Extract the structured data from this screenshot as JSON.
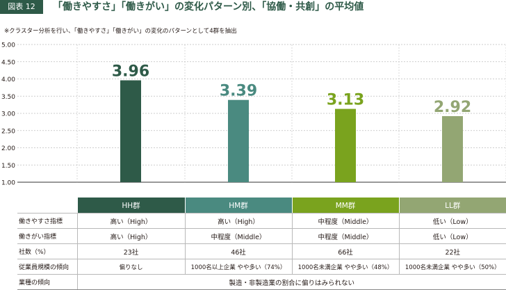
{
  "header": {
    "badge": "図表 12",
    "title": "「働きやすさ」「働きがい」の変化パターン別、「協働・共創」の平均値",
    "note": "※クラスター分析を行い、「働きやすさ」「働きがい」の変化のパターンとして4群を抽出"
  },
  "chart_data": {
    "type": "bar",
    "categories": [
      "HH群",
      "HM群",
      "MM群",
      "LL群"
    ],
    "values": [
      3.96,
      3.39,
      3.13,
      2.92
    ],
    "value_labels": [
      "3.96",
      "3.39",
      "3.13",
      "2.92"
    ],
    "bar_colors": [
      "#2e5a48",
      "#4a8a80",
      "#7aa31e",
      "#93a673"
    ],
    "ylim": [
      1.0,
      5.0
    ],
    "yticks": [
      "1.00",
      "1.50",
      "2.00",
      "2.50",
      "3.00",
      "3.50",
      "4.00",
      "4.50",
      "5.00"
    ],
    "grid": true,
    "title": "",
    "xlabel": "",
    "ylabel": ""
  },
  "table": {
    "groups": [
      {
        "label": "HH群",
        "color": "#2e5a48"
      },
      {
        "label": "HM群",
        "color": "#4a8a80"
      },
      {
        "label": "MM群",
        "color": "#7aa31e"
      },
      {
        "label": "LL群",
        "color": "#93a673"
      }
    ],
    "rows": [
      {
        "label": "働きやすさ指標",
        "cells": [
          "高い（High）",
          "高い（High）",
          "中程度（Middle）",
          "低い（Low）"
        ]
      },
      {
        "label": "働きがい指標",
        "cells": [
          "高い（High）",
          "中程度（Middle）",
          "中程度（Middle）",
          "低い（Low）"
        ]
      },
      {
        "label": "社数（%）",
        "cells": [
          "23社",
          "46社",
          "66社",
          "22社"
        ]
      },
      {
        "label": "従業員規模の傾向",
        "cells": [
          "偏りなし",
          "1000名以上企業 やや多い（74%）",
          "1000名未満企業 やや多い（48%）",
          "1000名未満企業 やや多い（50%）"
        ]
      }
    ],
    "industry_row": {
      "label": "業種の傾向",
      "value": "製造・非製造業の割合に偏りはみられない"
    }
  }
}
